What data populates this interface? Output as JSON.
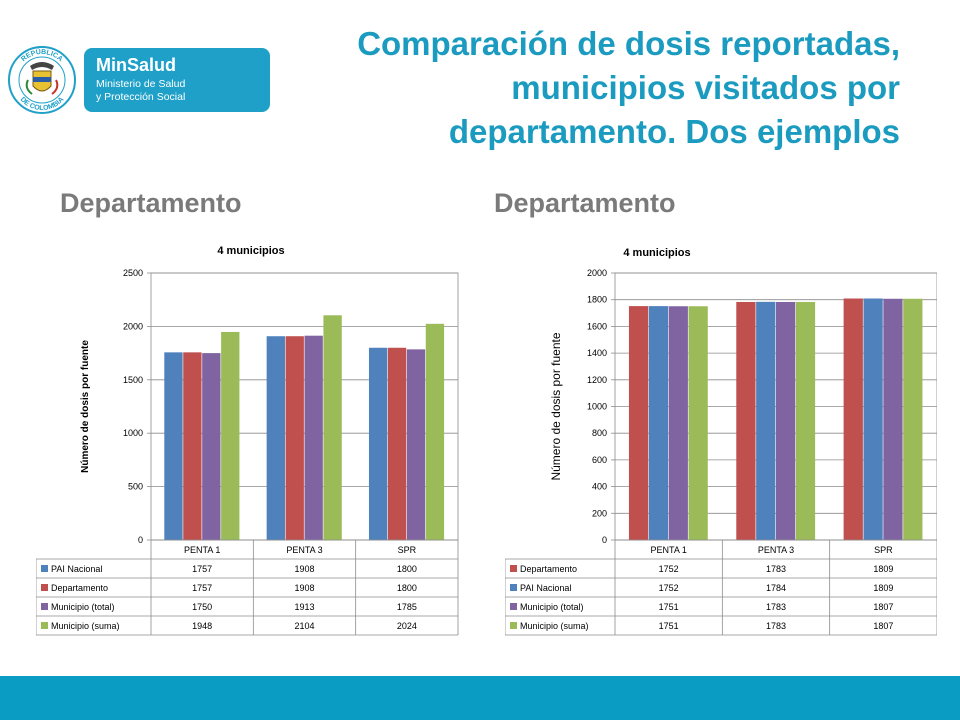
{
  "header": {
    "title_lines": [
      "Comparación de dosis reportadas,",
      "municipios visitados por",
      "departamento. Dos ejemplos"
    ],
    "left_heading": "Departamento",
    "right_heading": "Departamento",
    "colors": {
      "title": "#1a9bbf",
      "footer": "#0a9cc2"
    }
  },
  "logo": {
    "brand": "MinSalud",
    "line1": "Ministerio de Salud",
    "line2": "y Protección Social",
    "seal_text_top": "REPÚBLICA",
    "seal_text_bottom": "DE COLOMBIA",
    "colors": {
      "box": "#1fa0c8"
    }
  },
  "chart_data": [
    {
      "type": "bar",
      "title": "4 municipios",
      "ylabel": "Número de dosis por fuente",
      "xlabel": "",
      "categories": [
        "PENTA 1",
        "PENTA 3",
        "SPR"
      ],
      "ylim": [
        0,
        2500
      ],
      "yticks": [
        0,
        500,
        1000,
        1500,
        2000,
        2500
      ],
      "grid": true,
      "legend": "table-below",
      "series": [
        {
          "name": "PAI Nacional",
          "color": "#4f81bd",
          "values": [
            1757,
            1908,
            1800
          ]
        },
        {
          "name": "Departamento",
          "color": "#c0504d",
          "values": [
            1757,
            1908,
            1800
          ]
        },
        {
          "name": "Municipio (total)",
          "color": "#8064a2",
          "values": [
            1750,
            1913,
            1785
          ]
        },
        {
          "name": "Municipio (suma)",
          "color": "#9bbb59",
          "values": [
            1948,
            2104,
            2024
          ]
        }
      ]
    },
    {
      "type": "bar",
      "title": "4 municipios",
      "ylabel": "Número de dosis por  fuente",
      "xlabel": "",
      "categories": [
        "PENTA 1",
        "PENTA 3",
        "SPR"
      ],
      "ylim": [
        0,
        2000
      ],
      "yticks": [
        0,
        200,
        400,
        600,
        800,
        1000,
        1200,
        1400,
        1600,
        1800,
        2000
      ],
      "grid": true,
      "legend": "table-below",
      "series": [
        {
          "name": "Departamento",
          "color": "#c0504d",
          "values": [
            1752,
            1783,
            1809
          ]
        },
        {
          "name": "PAI Nacional",
          "color": "#4f81bd",
          "values": [
            1752,
            1784,
            1809
          ]
        },
        {
          "name": "Municipio (total)",
          "color": "#8064a2",
          "values": [
            1751,
            1783,
            1807
          ]
        },
        {
          "name": "Municipio (suma)",
          "color": "#9bbb59",
          "values": [
            1751,
            1783,
            1807
          ]
        }
      ]
    }
  ]
}
